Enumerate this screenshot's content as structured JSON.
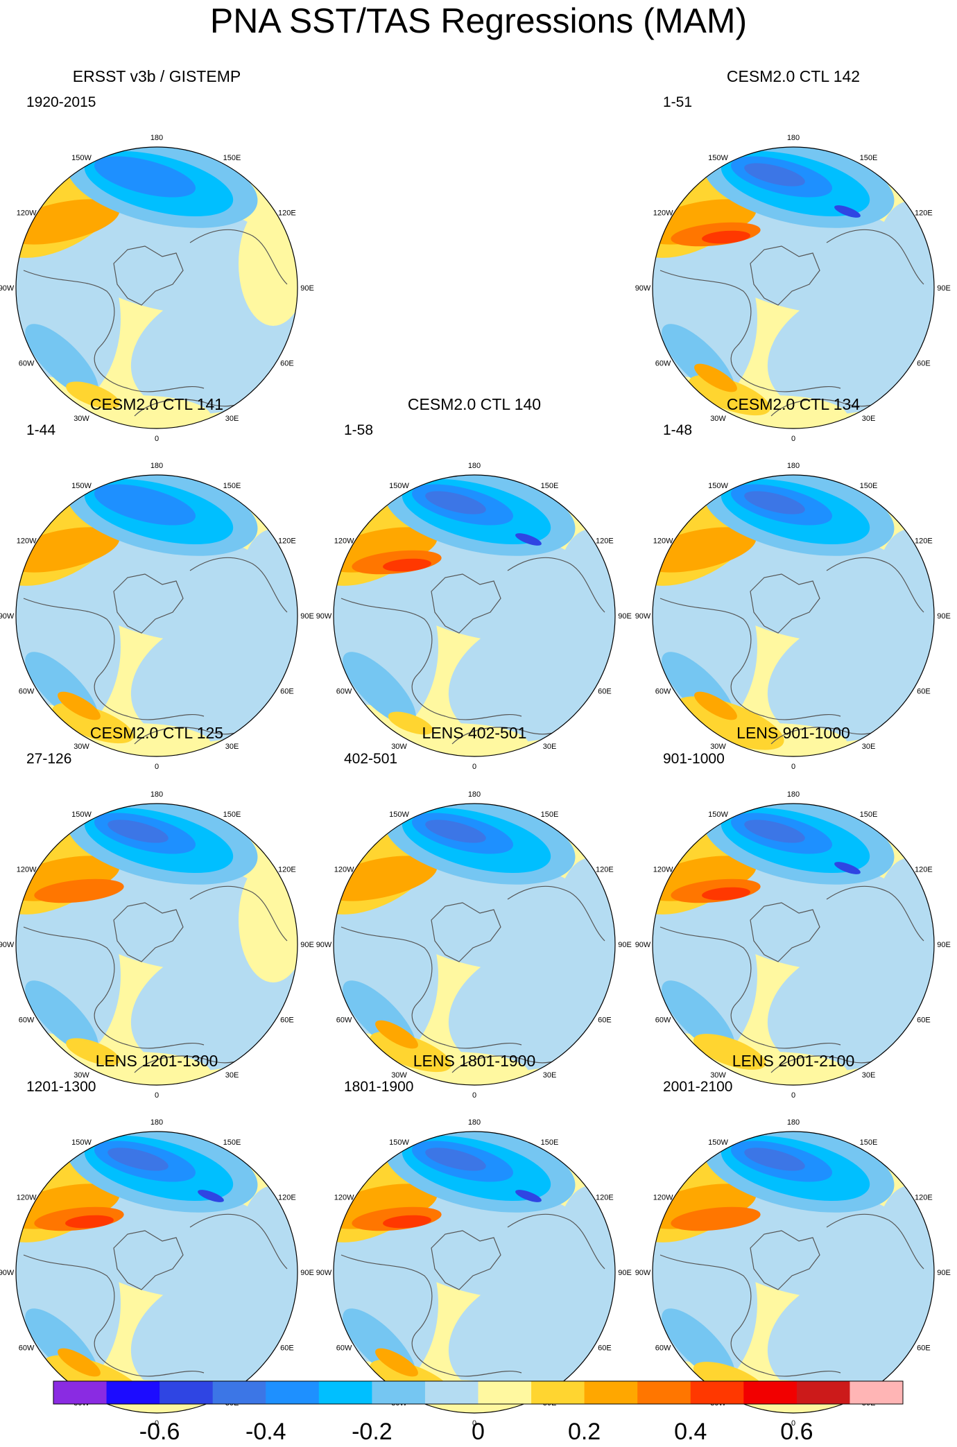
{
  "title": "PNA SST/TAS Regressions (MAM)",
  "lon_labels": [
    "180",
    "150E",
    "120E",
    "90E",
    "60E",
    "30E",
    "0",
    "30W",
    "60W",
    "90W",
    "120W",
    "150W"
  ],
  "palette": [
    "#8a2be2",
    "#1c0cff",
    "#2f45e3",
    "#3c76e6",
    "#1e90ff",
    "#00bfff",
    "#75c6f2",
    "#b4dcf2",
    "#fff8a0",
    "#ffd530",
    "#ffa700",
    "#ff7600",
    "#ff3800",
    "#f20000",
    "#cc1a1a",
    "#ffb5b5"
  ],
  "colorbar": {
    "ticks": [
      "-0.6",
      "-0.4",
      "-0.2",
      "0",
      "0.2",
      "0.4",
      "0.6"
    ],
    "tick_boundaries": [
      1,
      3,
      5,
      7,
      9,
      11,
      13
    ]
  },
  "panels": [
    {
      "id": "obs",
      "title": "ERSST v3b / GISTEMP",
      "period": "1920-2015",
      "row": 0,
      "col": 0,
      "strength": 0.65,
      "atl": 0.3,
      "land": 0.9
    },
    {
      "id": "ctl142",
      "title": "CESM2.0 CTL 142",
      "period": "1-51",
      "row": 0,
      "col": 2,
      "strength": 0.95,
      "atl": 0.6,
      "land": 0.4
    },
    {
      "id": "ctl141",
      "title": "CESM2.0 CTL 141",
      "period": "1-44",
      "row": 1,
      "col": 0,
      "strength": 0.7,
      "atl": 0.6,
      "land": 0.3
    },
    {
      "id": "ctl140",
      "title": "CESM2.0 CTL 140",
      "period": "1-58",
      "row": 1,
      "col": 1,
      "strength": 0.95,
      "atl": 0.2,
      "land": 0.3
    },
    {
      "id": "ctl134",
      "title": "CESM2.0 CTL 134",
      "period": "1-48",
      "row": 1,
      "col": 2,
      "strength": 0.75,
      "atl": 0.9,
      "land": 0.3
    },
    {
      "id": "ctl125",
      "title": "CESM2.0 CTL 125",
      "period": "27-126",
      "row": 2,
      "col": 0,
      "strength": 0.85,
      "atl": 0.3,
      "land": 0.8
    },
    {
      "id": "lens402",
      "title": "LENS 402-501",
      "period": "402-501",
      "row": 2,
      "col": 1,
      "strength": 0.8,
      "atl": 0.6,
      "land": 0.3
    },
    {
      "id": "lens901",
      "title": "LENS 901-1000",
      "period": "901-1000",
      "row": 2,
      "col": 2,
      "strength": 0.95,
      "atl": 0.5,
      "land": 0.3
    },
    {
      "id": "lens1201",
      "title": "LENS 1201-1300",
      "period": "1201-1300",
      "row": 3,
      "col": 0,
      "strength": 1.0,
      "atl": 0.8,
      "land": 0.5
    },
    {
      "id": "lens1801",
      "title": "LENS 1801-1900",
      "period": "1801-1900",
      "row": 3,
      "col": 1,
      "strength": 0.95,
      "atl": 0.6,
      "land": 0.5
    },
    {
      "id": "lens2001",
      "title": "LENS 2001-2100",
      "period": "2001-2100",
      "row": 3,
      "col": 2,
      "strength": 0.9,
      "atl": 0.5,
      "land": 0.5
    }
  ]
}
